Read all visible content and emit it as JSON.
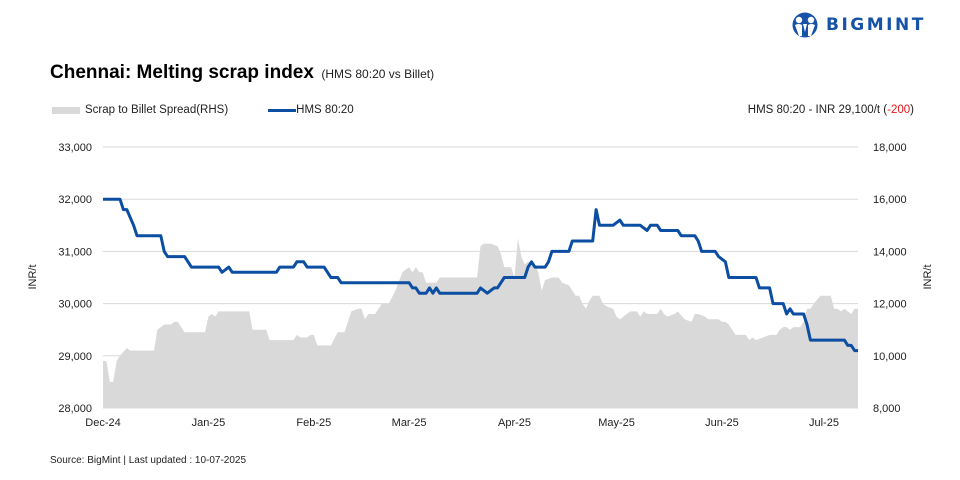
{
  "brand": {
    "name": "BIGMINT",
    "color": "#1552a8"
  },
  "title": {
    "main": "Chennai: Melting scrap index",
    "sub": "(HMS 80:20 vs Billet)"
  },
  "legend": [
    {
      "label": "Scrap to Billet Spread(RHS)",
      "type": "area",
      "color": "#d9d9d9"
    },
    {
      "label": "HMS 80:20",
      "type": "line",
      "color": "#0b4ea2"
    }
  ],
  "annotation": {
    "text": "HMS 80:20 - INR 29,100/t (",
    "change": "-200",
    "close": ")",
    "change_color": "#e8161b"
  },
  "source": "Source: BigMint | Last updated : 10-07-2025",
  "chart_data": {
    "type": "line",
    "title": "Chennai: Melting scrap index (HMS 80:20 vs Billet)",
    "xlabel": "",
    "ylabel": "INR/t",
    "y2label": "INR/t",
    "ylim": [
      28000,
      33000
    ],
    "y2lim": [
      8000,
      18000
    ],
    "yticks": [
      "28,000",
      "29,000",
      "30,000",
      "31,000",
      "32,000",
      "33,000"
    ],
    "y2ticks": [
      "8,000",
      "10,000",
      "12,000",
      "14,000",
      "16,000",
      "18,000"
    ],
    "categories": [
      "Dec-24",
      "Jan-25",
      "Feb-25",
      "Mar-25",
      "Apr-25",
      "May-25",
      "Jun-25",
      "Jul-25"
    ],
    "grid": true,
    "legend_position": "top",
    "x_index_range": [
      0,
      222
    ],
    "category_positions": [
      0,
      31,
      62,
      90,
      121,
      151,
      182,
      212
    ],
    "series": [
      {
        "name": "HMS 80:20",
        "type": "line",
        "axis": "left",
        "color": "#0b4ea2",
        "points": [
          [
            0,
            32000
          ],
          [
            5,
            32000
          ],
          [
            6,
            31800
          ],
          [
            7,
            31800
          ],
          [
            9,
            31500
          ],
          [
            10,
            31300
          ],
          [
            17,
            31300
          ],
          [
            18,
            31000
          ],
          [
            19,
            30900
          ],
          [
            24,
            30900
          ],
          [
            26,
            30700
          ],
          [
            34,
            30700
          ],
          [
            35,
            30600
          ],
          [
            37,
            30700
          ],
          [
            38,
            30600
          ],
          [
            51,
            30600
          ],
          [
            52,
            30700
          ],
          [
            56,
            30700
          ],
          [
            57,
            30800
          ],
          [
            59,
            30800
          ],
          [
            60,
            30700
          ],
          [
            65,
            30700
          ],
          [
            67,
            30500
          ],
          [
            69,
            30500
          ],
          [
            70,
            30400
          ],
          [
            90,
            30400
          ],
          [
            91,
            30300
          ],
          [
            92,
            30300
          ],
          [
            93,
            30200
          ],
          [
            95,
            30200
          ],
          [
            96,
            30300
          ],
          [
            97,
            30200
          ],
          [
            98,
            30300
          ],
          [
            99,
            30200
          ],
          [
            110,
            30200
          ],
          [
            111,
            30300
          ],
          [
            113,
            30200
          ],
          [
            115,
            30300
          ],
          [
            116,
            30300
          ],
          [
            118,
            30500
          ],
          [
            124,
            30500
          ],
          [
            125,
            30700
          ],
          [
            126,
            30800
          ],
          [
            127,
            30700
          ],
          [
            130,
            30700
          ],
          [
            131,
            30800
          ],
          [
            132,
            31000
          ],
          [
            137,
            31000
          ],
          [
            138,
            31200
          ],
          [
            144,
            31200
          ],
          [
            145,
            31800
          ],
          [
            146,
            31500
          ],
          [
            150,
            31500
          ],
          [
            152,
            31600
          ],
          [
            153,
            31500
          ],
          [
            158,
            31500
          ],
          [
            160,
            31400
          ],
          [
            161,
            31500
          ],
          [
            163,
            31500
          ],
          [
            164,
            31400
          ],
          [
            169,
            31400
          ],
          [
            170,
            31300
          ],
          [
            174,
            31300
          ],
          [
            175,
            31200
          ],
          [
            176,
            31000
          ],
          [
            180,
            31000
          ],
          [
            181,
            30900
          ],
          [
            183,
            30800
          ],
          [
            184,
            30500
          ],
          [
            192,
            30500
          ],
          [
            193,
            30300
          ],
          [
            196,
            30300
          ],
          [
            197,
            30000
          ],
          [
            200,
            30000
          ],
          [
            201,
            29800
          ],
          [
            202,
            29900
          ],
          [
            203,
            29800
          ],
          [
            206,
            29800
          ],
          [
            207,
            29600
          ],
          [
            208,
            29300
          ],
          [
            218,
            29300
          ],
          [
            219,
            29200
          ],
          [
            220,
            29200
          ],
          [
            221,
            29100
          ],
          [
            222,
            29100
          ]
        ]
      },
      {
        "name": "Scrap to Billet Spread(RHS)",
        "type": "area",
        "axis": "right",
        "color": "#d9d9d9",
        "points": [
          [
            0,
            9800
          ],
          [
            1,
            9800
          ],
          [
            2,
            9000
          ],
          [
            3,
            9000
          ],
          [
            4,
            9800
          ],
          [
            5,
            10000
          ],
          [
            7,
            10300
          ],
          [
            8,
            10200
          ],
          [
            15,
            10200
          ],
          [
            16,
            11000
          ],
          [
            17,
            11100
          ],
          [
            18,
            11200
          ],
          [
            20,
            11200
          ],
          [
            21,
            11300
          ],
          [
            22,
            11300
          ],
          [
            24,
            10900
          ],
          [
            30,
            10900
          ],
          [
            31,
            11500
          ],
          [
            32,
            11600
          ],
          [
            33,
            11500
          ],
          [
            34,
            11700
          ],
          [
            43,
            11700
          ],
          [
            44,
            11000
          ],
          [
            48,
            11000
          ],
          [
            49,
            10600
          ],
          [
            56,
            10600
          ],
          [
            57,
            10800
          ],
          [
            58,
            10700
          ],
          [
            60,
            10700
          ],
          [
            61,
            10800
          ],
          [
            62,
            10800
          ],
          [
            63,
            10400
          ],
          [
            67,
            10400
          ],
          [
            69,
            10900
          ],
          [
            71,
            10900
          ],
          [
            73,
            11700
          ],
          [
            75,
            11800
          ],
          [
            76,
            11800
          ],
          [
            77,
            11400
          ],
          [
            78,
            11600
          ],
          [
            79,
            11600
          ],
          [
            80,
            11600
          ],
          [
            82,
            12000
          ],
          [
            84,
            12000
          ],
          [
            86,
            12500
          ],
          [
            88,
            13200
          ],
          [
            90,
            13400
          ],
          [
            91,
            13200
          ],
          [
            92,
            13400
          ],
          [
            93,
            13200
          ],
          [
            94,
            13200
          ],
          [
            95,
            12800
          ],
          [
            96,
            12800
          ],
          [
            98,
            12800
          ],
          [
            99,
            13000
          ],
          [
            110,
            13000
          ],
          [
            111,
            14200
          ],
          [
            112,
            14300
          ],
          [
            114,
            14300
          ],
          [
            116,
            14200
          ],
          [
            117,
            13900
          ],
          [
            118,
            13400
          ],
          [
            119,
            13400
          ],
          [
            120,
            13400
          ],
          [
            121,
            13000
          ],
          [
            122,
            14500
          ],
          [
            123,
            13800
          ],
          [
            124,
            13500
          ],
          [
            125,
            13600
          ],
          [
            127,
            13500
          ],
          [
            128,
            13200
          ],
          [
            129,
            12500
          ],
          [
            130,
            12900
          ],
          [
            132,
            13000
          ],
          [
            134,
            13000
          ],
          [
            135,
            12800
          ],
          [
            137,
            12700
          ],
          [
            139,
            12300
          ],
          [
            140,
            12300
          ],
          [
            141,
            12000
          ],
          [
            142,
            11800
          ],
          [
            143,
            12100
          ],
          [
            144,
            12300
          ],
          [
            146,
            12300
          ],
          [
            147,
            12000
          ],
          [
            148,
            11900
          ],
          [
            150,
            11800
          ],
          [
            151,
            11500
          ],
          [
            152,
            11400
          ],
          [
            154,
            11600
          ],
          [
            155,
            11700
          ],
          [
            157,
            11700
          ],
          [
            158,
            11500
          ],
          [
            159,
            11700
          ],
          [
            160,
            11600
          ],
          [
            163,
            11600
          ],
          [
            164,
            11800
          ],
          [
            165,
            11600
          ],
          [
            166,
            11500
          ],
          [
            168,
            11600
          ],
          [
            169,
            11700
          ],
          [
            171,
            11400
          ],
          [
            173,
            11300
          ],
          [
            174,
            11600
          ],
          [
            175,
            11600
          ],
          [
            177,
            11500
          ],
          [
            178,
            11400
          ],
          [
            181,
            11400
          ],
          [
            182,
            11300
          ],
          [
            183,
            11300
          ],
          [
            184,
            11200
          ],
          [
            185,
            11000
          ],
          [
            186,
            10800
          ],
          [
            189,
            10800
          ],
          [
            190,
            10600
          ],
          [
            191,
            10700
          ],
          [
            192,
            10600
          ],
          [
            194,
            10700
          ],
          [
            196,
            10800
          ],
          [
            198,
            10800
          ],
          [
            199,
            11000
          ],
          [
            200,
            11100
          ],
          [
            201,
            11100
          ],
          [
            202,
            11000
          ],
          [
            203,
            11100
          ],
          [
            205,
            11100
          ],
          [
            206,
            11300
          ],
          [
            207,
            11800
          ],
          [
            208,
            11800
          ],
          [
            209,
            12000
          ],
          [
            211,
            12300
          ],
          [
            214,
            12300
          ],
          [
            215,
            11800
          ],
          [
            216,
            11800
          ],
          [
            217,
            11700
          ],
          [
            218,
            11800
          ],
          [
            220,
            11600
          ],
          [
            221,
            11800
          ],
          [
            222,
            11800
          ]
        ]
      }
    ]
  }
}
